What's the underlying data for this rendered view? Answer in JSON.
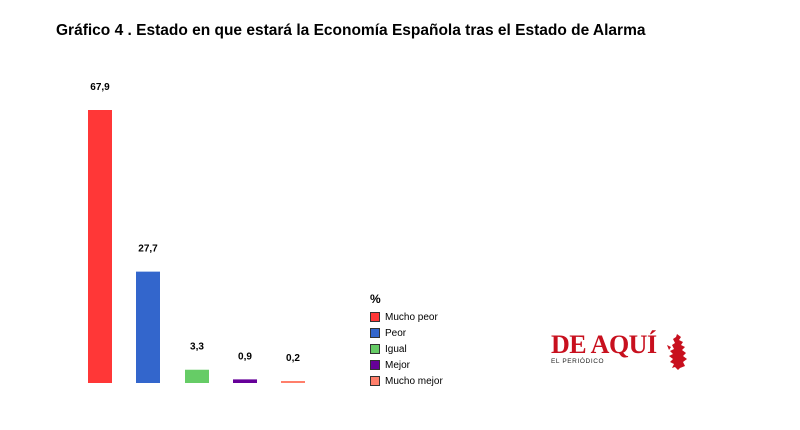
{
  "title": "Gráfico 4 . Estado en que estará la Economía Española tras el Estado de Alarma",
  "chart_data": {
    "type": "bar",
    "categories": [
      "Mucho peor",
      "Peor",
      "Igual",
      "Mejor",
      "Mucho mejor"
    ],
    "values": [
      67.9,
      27.7,
      3.3,
      0.9,
      0.2
    ],
    "value_labels": [
      "67,9",
      "27,7",
      "3,3",
      "0,9",
      "0,2"
    ],
    "colors": [
      "#ff3737",
      "#3366cc",
      "#66cc66",
      "#660099",
      "#ff7f6b"
    ],
    "legend_title": "%",
    "legend_position": "bottom-center",
    "grid": false,
    "ylim": [
      0,
      67.9
    ]
  },
  "logo": {
    "main": "DE AQUÍ",
    "sub": "EL PERIÓDICO",
    "color": "#c8101e"
  }
}
